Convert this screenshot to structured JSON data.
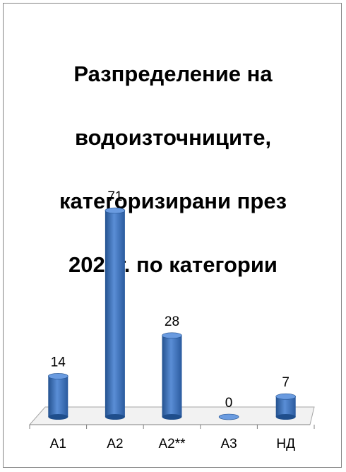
{
  "chart_data": {
    "type": "bar",
    "title": "Разпределение на водоизточниците, категоризирани през 2020г. по категории",
    "title_lines": [
      "Разпределение на",
      "водоизточниците,",
      "категоризирани през",
      "2020г. по категории"
    ],
    "categories": [
      "А1",
      "А2",
      "А2**",
      "А3",
      "НД"
    ],
    "values": [
      14,
      71,
      28,
      0,
      7
    ],
    "data_labels": [
      "14",
      "71",
      "28",
      "0",
      "7"
    ],
    "ylim": [
      0,
      71
    ],
    "grid": false,
    "legend": "none",
    "bar_style": "3d-cylinder",
    "colors": {
      "bar": "#3A6FBF",
      "bar_light": "#6A9BE0",
      "bar_dark": "#1F4E8C",
      "floor": "#F2F2F2",
      "axis": "#808080"
    }
  }
}
